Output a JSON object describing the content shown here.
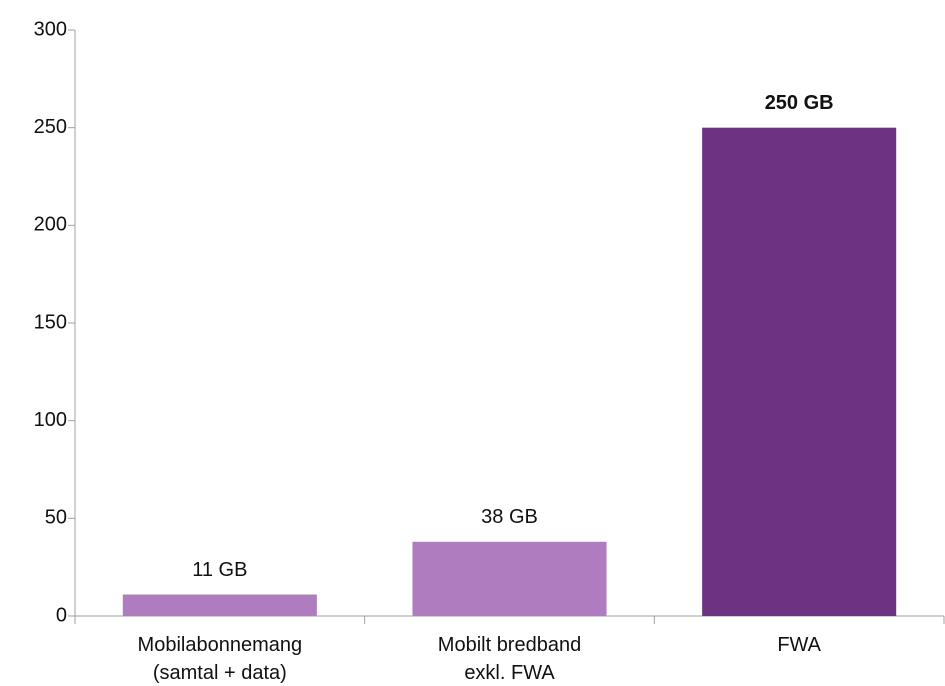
{
  "chart_data": {
    "type": "bar",
    "categories": [
      "Mobilabonnemang\n(samtal + data)",
      "Mobilt bredband\nexkl. FWA",
      "FWA"
    ],
    "values": [
      11,
      38,
      250
    ],
    "value_labels": [
      "11 GB",
      "38 GB",
      "250 GB"
    ],
    "colors": [
      "#b07cc0",
      "#b07cc0",
      "#6b3381"
    ],
    "ylim": [
      0,
      300
    ],
    "yticks": [
      0,
      50,
      100,
      150,
      200,
      250,
      300
    ],
    "grid": false
  }
}
